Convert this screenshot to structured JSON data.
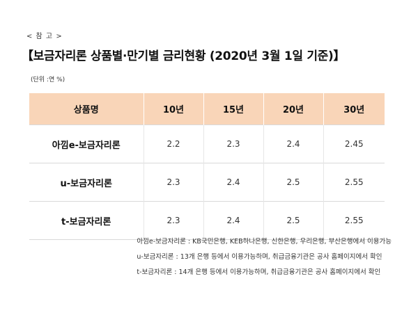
{
  "reference_label": "< 참 고 >",
  "title": "【보금자리론 상품별·만기별 금리현황 (2020년 3월 1일 기준)】",
  "unit": "(단위 :연 %)",
  "table": {
    "headers": [
      "상품명",
      "10년",
      "15년",
      "20년",
      "30년"
    ],
    "rows": [
      [
        "아낌e-보금자리론",
        "2.2",
        "2.3",
        "2.4",
        "2.45"
      ],
      [
        "u-보금자리론",
        "2.3",
        "2.4",
        "2.5",
        "2.55"
      ],
      [
        "t-보금자리론",
        "2.3",
        "2.4",
        "2.5",
        "2.55"
      ]
    ]
  },
  "notes": [
    "아낌e-보금자리론 : KB국민은행, KEB하나은행, 신한은행, 우리은행, 부산은행에서 이용가능",
    "u-보금자리론 : 13개 은행 등에서 이용가능하며, 취급금융기관은 공사 홈페이지에서 확인",
    "t-보금자리론 : 14개 은행 등에서 이용가능하며, 취급금융기관은 공사 홈페이지에서 확인"
  ]
}
